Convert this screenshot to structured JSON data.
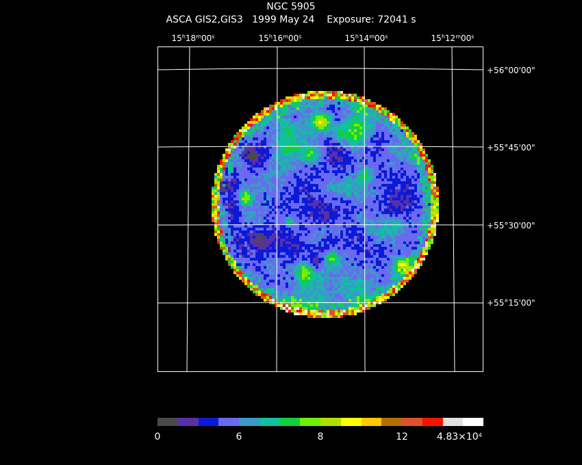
{
  "header": {
    "object": "NGC 5905",
    "instrument": "ASCA GIS2,GIS3",
    "date": "1999 May 24",
    "exposure": "Exposure: 72041 s"
  },
  "ra_labels": [
    {
      "h": "15",
      "m": "18",
      "s": "00"
    },
    {
      "h": "15",
      "m": "16",
      "s": "00"
    },
    {
      "h": "15",
      "m": "14",
      "s": "00"
    },
    {
      "h": "15",
      "m": "12",
      "s": "00"
    }
  ],
  "dec_labels": [
    "+56°00'00\"",
    "+55°45'00\"",
    "+55°30'00\"",
    "+55°15'00\""
  ],
  "colorbar": {
    "colors": [
      "#4a4a4a",
      "#5a2fa8",
      "#0a1ad8",
      "#6a6af0",
      "#3a9ac8",
      "#10c0a0",
      "#10d040",
      "#70f000",
      "#b0e000",
      "#ffff00",
      "#ffc800",
      "#b07000",
      "#e05030",
      "#ff1000",
      "#e0e0e0",
      "#ffffff"
    ],
    "tick_labels": [
      "0",
      "6",
      "8",
      "12"
    ],
    "max_label_mantissa": "4.83×10",
    "max_label_exp": "4"
  }
}
